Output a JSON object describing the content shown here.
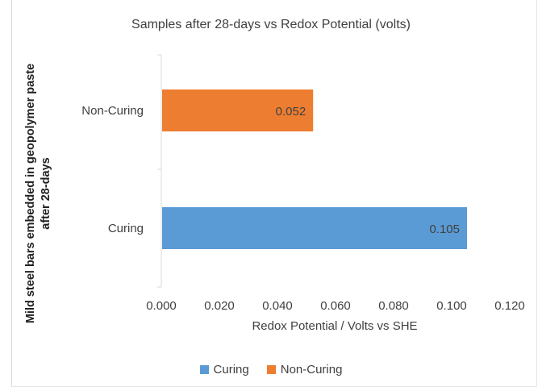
{
  "chart_data": {
    "type": "bar",
    "orientation": "horizontal",
    "title": "Samples after 28-days vs Redox Potential (volts)",
    "xlabel": "Redox  Potential / Volts vs SHE",
    "ylabel": "Mild steel bars embedded in geopolymer paste after 28-days",
    "xlim": [
      0,
      0.12
    ],
    "x_ticks": [
      "0.000",
      "0.020",
      "0.040",
      "0.060",
      "0.080",
      "0.100",
      "0.120"
    ],
    "categories": [
      "Non-Curing",
      "Curing"
    ],
    "series": [
      {
        "name": "Curing",
        "color": "#5b9bd5",
        "category": "Curing",
        "value": 0.105,
        "label": "0.105"
      },
      {
        "name": "Non-Curing",
        "color": "#ed7d31",
        "category": "Non-Curing",
        "value": 0.052,
        "label": "0.052"
      }
    ],
    "grid": false,
    "legend_position": "bottom"
  }
}
